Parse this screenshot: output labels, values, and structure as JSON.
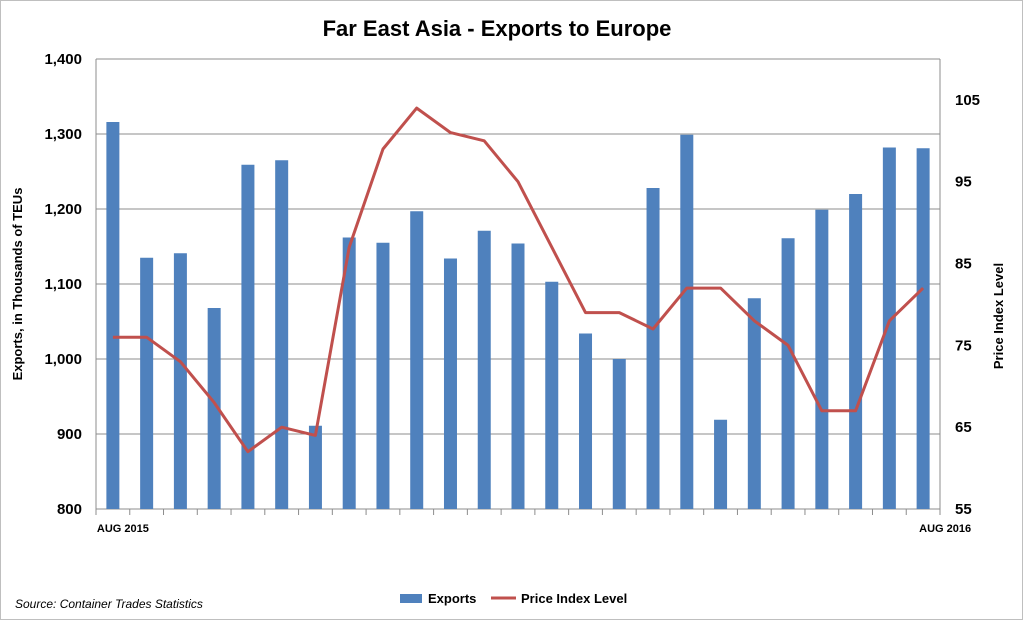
{
  "chart_data": {
    "type": "bar+line",
    "title": "Far East Asia - Exports to Europe",
    "categories": [
      "AUG 2015",
      "",
      "",
      "",
      "",
      "",
      "",
      "",
      "",
      "",
      "",
      "",
      "",
      "",
      "",
      "",
      "",
      "",
      "",
      "",
      "",
      "",
      "",
      "",
      "AUG 2016"
    ],
    "series": [
      {
        "name": "Exports",
        "type": "bar",
        "axis": "left",
        "color": "#4f81bd",
        "values": [
          1316,
          1135,
          1141,
          1068,
          1259,
          1265,
          911,
          1162,
          1155,
          1197,
          1134,
          1171,
          1154,
          1103,
          1034,
          1000,
          1228,
          1299,
          919,
          1081,
          1161,
          1199,
          1220,
          1282,
          1281
        ]
      },
      {
        "name": "Price Index Level",
        "type": "line",
        "axis": "right",
        "color": "#c0504d",
        "values": [
          76,
          76,
          73,
          68,
          62,
          65,
          64,
          87,
          99,
          104,
          101,
          100,
          95,
          87,
          79,
          79,
          77,
          82,
          82,
          78,
          75,
          67,
          67,
          78,
          82
        ]
      }
    ],
    "y_left": {
      "label": "Exports, in Thousands of TEUs",
      "ylim": [
        800,
        1400
      ],
      "ticks": [
        800,
        900,
        1000,
        1100,
        1200,
        1300,
        1400
      ],
      "tick_labels": [
        "800",
        "900",
        "1,000",
        "1,100",
        "1,200",
        "1,300",
        "1,400"
      ]
    },
    "y_right": {
      "label": "Price Index Level",
      "ylim": [
        55,
        110
      ],
      "ticks": [
        55,
        65,
        75,
        85,
        95,
        105
      ],
      "tick_labels": [
        "55",
        "65",
        "75",
        "85",
        "95",
        "105"
      ]
    },
    "grid": true,
    "legend": {
      "position": "bottom",
      "entries": [
        "Exports",
        "Price Index Level"
      ]
    },
    "source": "Source: Container Trades Statistics"
  }
}
